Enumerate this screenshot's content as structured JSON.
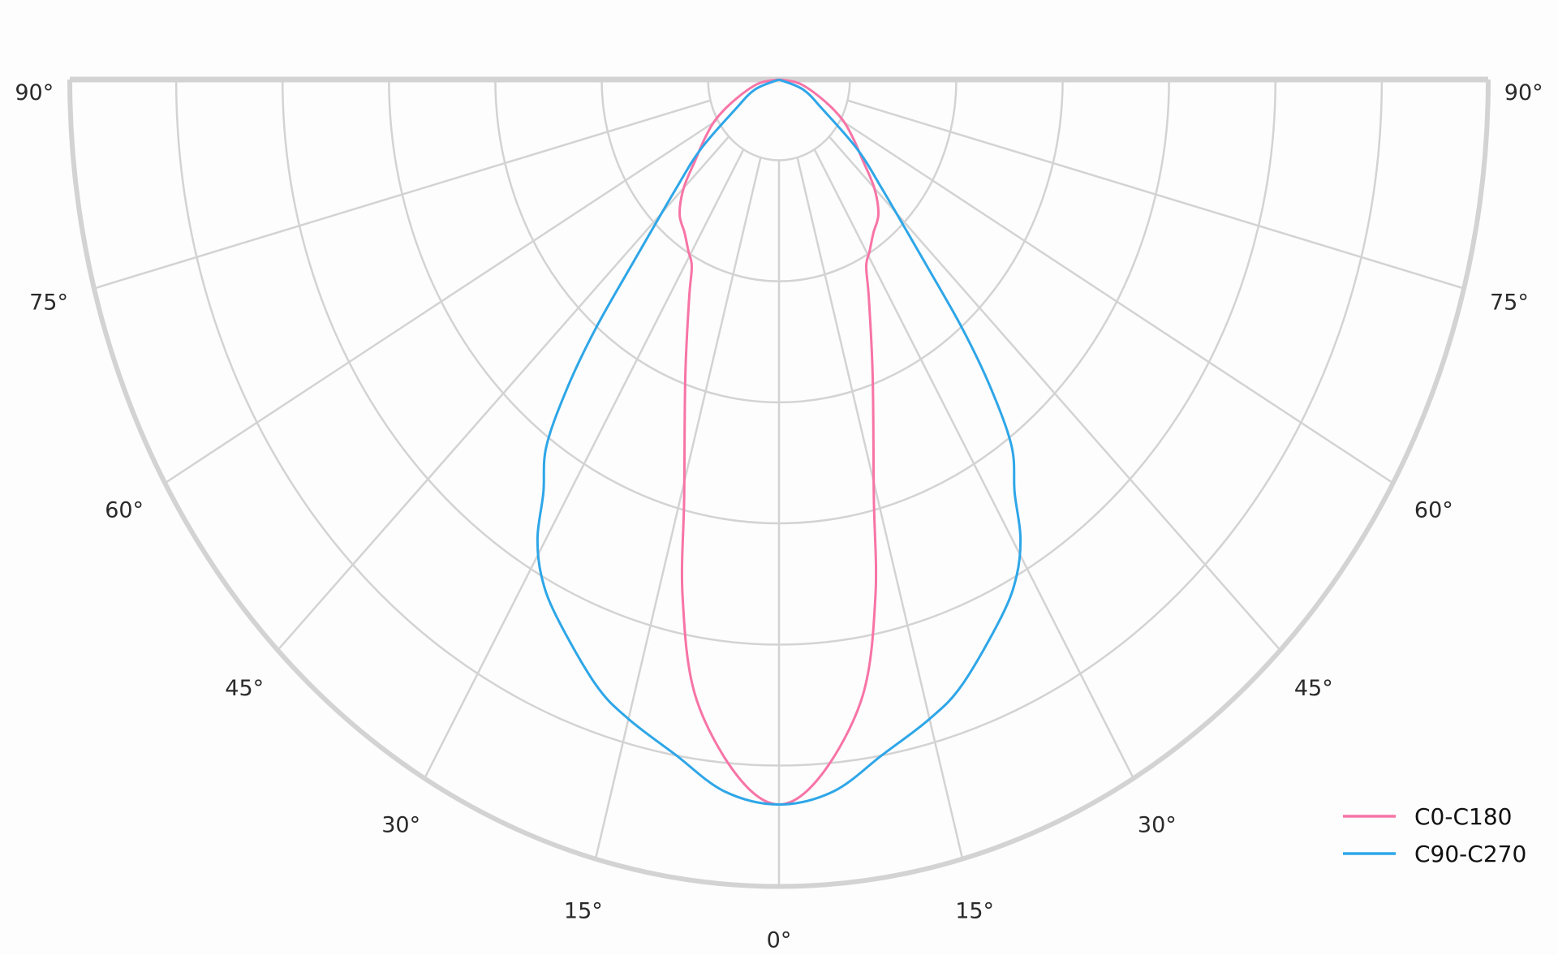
{
  "chart_data": {
    "type": "polar",
    "title": "",
    "angle_range_deg": [
      -90,
      90
    ],
    "angle_tick_step_deg": 15,
    "angle_labels": [
      "0°",
      "15°",
      "30°",
      "45°",
      "60°",
      "75°",
      "90°"
    ],
    "radial_rings": [
      0.1,
      0.25,
      0.4,
      0.55,
      0.7,
      0.85,
      1.0
    ],
    "radial_tick_labels_shown": false,
    "grid": true,
    "legend_position": "bottom-right",
    "series": [
      {
        "name": "C0-C180",
        "color": "#f774a6",
        "symmetric": true,
        "angles_deg": [
          0,
          4,
          8.8,
          12,
          14.5,
          19.7,
          25,
          28,
          31,
          35,
          40,
          45,
          50,
          55,
          61,
          68,
          80,
          90
        ],
        "values": [
          0.898,
          0.863,
          0.772,
          0.654,
          0.534,
          0.392,
          0.3,
          0.262,
          0.248,
          0.232,
          0.218,
          0.19,
          0.153,
          0.128,
          0.102,
          0.067,
          0.03,
          0
        ]
      },
      {
        "name": "C90-C270",
        "color": "#2ea6e8",
        "symmetric": true,
        "angles_deg": [
          0,
          5,
          9.9,
          15,
          19,
          25.3,
          28.6,
          31,
          33,
          35.8,
          38,
          40,
          42.4,
          47,
          52,
          59,
          70,
          90
        ],
        "values": [
          0.898,
          0.885,
          0.849,
          0.82,
          0.793,
          0.735,
          0.7,
          0.661,
          0.61,
          0.561,
          0.485,
          0.401,
          0.3,
          0.199,
          0.14,
          0.072,
          0.036,
          0
        ]
      }
    ]
  }
}
